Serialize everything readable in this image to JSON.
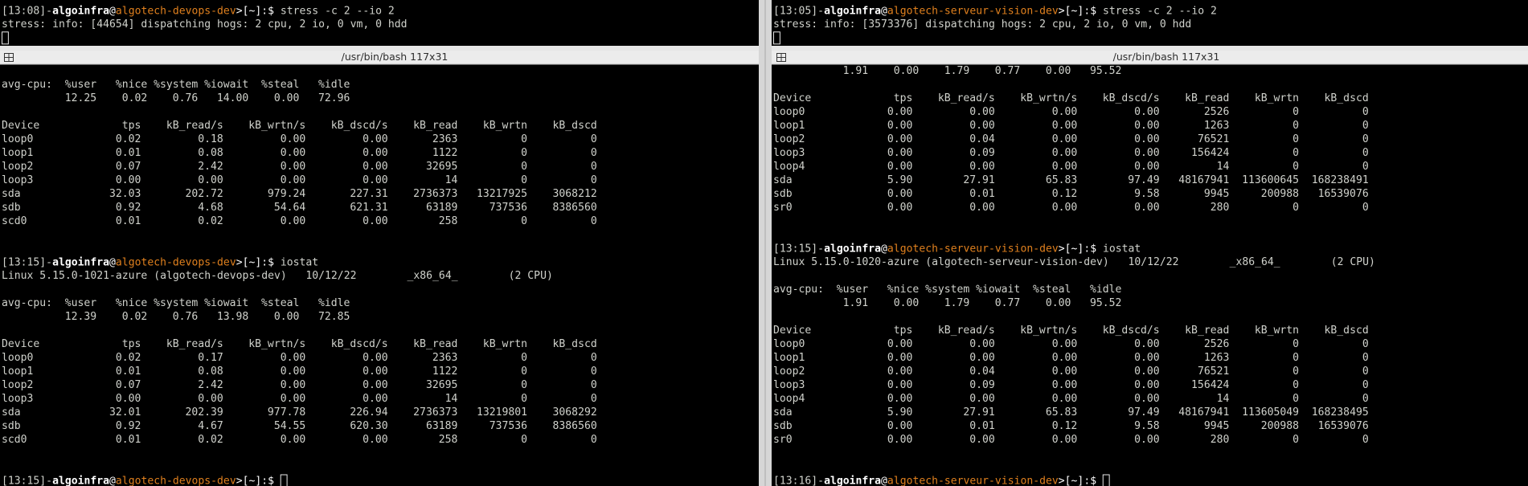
{
  "panes": [
    {
      "lines": [
        {
          "prompt": [
            "[13:08]-",
            "algoinfra",
            "@",
            "algotech-devops-dev",
            ">[~]:$ ",
            "stress -c 2 --io 2"
          ]
        },
        {
          "text": "stress: info: [44654] dispatching hogs: 2 cpu, 2 io, 0 vm, 0 hdd"
        },
        {
          "cursor": true
        }
      ]
    },
    {
      "lines": [
        {
          "prompt": [
            "[13:05]-",
            "algoinfra",
            "@",
            "algotech-serveur-vision-dev",
            ">[~]:$ ",
            "stress -c 2 --io 2"
          ]
        },
        {
          "text": "stress: info: [3573376] dispatching hogs: 2 cpu, 2 io, 0 vm, 0 hdd"
        },
        {
          "cursor": true
        }
      ]
    },
    {
      "title": "/usr/bin/bash 117x31",
      "idle_color": "#8f5fa8",
      "lines": [
        null,
        {
          "cpu_header": [
            "avg-cpu:",
            "%user",
            "%nice",
            "%system",
            "%iowait",
            "%steal",
            "%idle"
          ]
        },
        {
          "cpu": [
            "12.25",
            "0.02",
            "0.76",
            "14.00",
            "0.00",
            "72.96"
          ]
        },
        null,
        {
          "device_header": [
            "Device",
            "tps",
            "kB_read/s",
            "kB_wrtn/s",
            "kB_dscd/s",
            "kB_read",
            "kB_wrtn",
            "kB_dscd"
          ]
        },
        {
          "device": [
            "loop0",
            "0.02",
            "0.18",
            "0.00",
            "0.00",
            "2363",
            "0",
            "0"
          ]
        },
        {
          "device": [
            "loop1",
            "0.01",
            "0.08",
            "0.00",
            "0.00",
            "1122",
            "0",
            "0"
          ]
        },
        {
          "device": [
            "loop2",
            "0.07",
            "2.42",
            "0.00",
            "0.00",
            "32695",
            "0",
            "0"
          ]
        },
        {
          "device": [
            "loop3",
            "0.00",
            "0.00",
            "0.00",
            "0.00",
            "14",
            "0",
            "0"
          ]
        },
        {
          "device": [
            "sda",
            "32.03",
            "202.72",
            "979.24",
            "227.31",
            "2736373",
            "13217925",
            "3068212"
          ]
        },
        {
          "device": [
            "sdb",
            "0.92",
            "4.68",
            "54.64",
            "621.31",
            "63189",
            "737536",
            "8386560"
          ]
        },
        {
          "device": [
            "scd0",
            "0.01",
            "0.02",
            "0.00",
            "0.00",
            "258",
            "0",
            "0"
          ]
        },
        null,
        null,
        {
          "prompt": [
            "[13:15]-",
            "algoinfra",
            "@",
            "algotech-devops-dev",
            ">[~]:$ ",
            "iostat"
          ]
        },
        {
          "text": "Linux 5.15.0-1021-azure (algotech-devops-dev)   10/12/22        _x86_64_        (2 CPU)"
        },
        null,
        {
          "cpu_header": [
            "avg-cpu:",
            "%user",
            "%nice",
            "%system",
            "%iowait",
            "%steal",
            "%idle"
          ]
        },
        {
          "cpu": [
            "12.39",
            "0.02",
            "0.76",
            "13.98",
            "0.00",
            "72.85"
          ]
        },
        null,
        {
          "device_header": [
            "Device",
            "tps",
            "kB_read/s",
            "kB_wrtn/s",
            "kB_dscd/s",
            "kB_read",
            "kB_wrtn",
            "kB_dscd"
          ]
        },
        {
          "device": [
            "loop0",
            "0.02",
            "0.17",
            "0.00",
            "0.00",
            "2363",
            "0",
            "0"
          ]
        },
        {
          "device": [
            "loop1",
            "0.01",
            "0.08",
            "0.00",
            "0.00",
            "1122",
            "0",
            "0"
          ]
        },
        {
          "device": [
            "loop2",
            "0.07",
            "2.42",
            "0.00",
            "0.00",
            "32695",
            "0",
            "0"
          ]
        },
        {
          "device": [
            "loop3",
            "0.00",
            "0.00",
            "0.00",
            "0.00",
            "14",
            "0",
            "0"
          ]
        },
        {
          "device": [
            "sda",
            "32.01",
            "202.39",
            "977.78",
            "226.94",
            "2736373",
            "13219801",
            "3068292"
          ]
        },
        {
          "device": [
            "sdb",
            "0.92",
            "4.67",
            "54.55",
            "620.30",
            "63189",
            "737536",
            "8386560"
          ]
        },
        {
          "device": [
            "scd0",
            "0.01",
            "0.02",
            "0.00",
            "0.00",
            "258",
            "0",
            "0"
          ]
        },
        null,
        null,
        {
          "prompt": [
            "[13:15]-",
            "algoinfra",
            "@",
            "algotech-devops-dev",
            ">[~]:$ "
          ],
          "cursor": true
        }
      ]
    },
    {
      "title": "/usr/bin/bash 117x31",
      "idle_color": "#cc1010",
      "lines": [
        {
          "cpu": [
            "1.91",
            "0.00",
            "1.79",
            "0.77",
            "0.00",
            "95.52"
          ]
        },
        null,
        {
          "device_header": [
            "Device",
            "tps",
            "kB_read/s",
            "kB_wrtn/s",
            "kB_dscd/s",
            "kB_read",
            "kB_wrtn",
            "kB_dscd"
          ]
        },
        {
          "device": [
            "loop0",
            "0.00",
            "0.00",
            "0.00",
            "0.00",
            "2526",
            "0",
            "0"
          ]
        },
        {
          "device": [
            "loop1",
            "0.00",
            "0.00",
            "0.00",
            "0.00",
            "1263",
            "0",
            "0"
          ]
        },
        {
          "device": [
            "loop2",
            "0.00",
            "0.04",
            "0.00",
            "0.00",
            "76521",
            "0",
            "0"
          ]
        },
        {
          "device": [
            "loop3",
            "0.00",
            "0.09",
            "0.00",
            "0.00",
            "156424",
            "0",
            "0"
          ]
        },
        {
          "device": [
            "loop4",
            "0.00",
            "0.00",
            "0.00",
            "0.00",
            "14",
            "0",
            "0"
          ]
        },
        {
          "device": [
            "sda",
            "5.90",
            "27.91",
            "65.83",
            "97.49",
            "48167941",
            "113600645",
            "168238491"
          ]
        },
        {
          "device": [
            "sdb",
            "0.00",
            "0.01",
            "0.12",
            "9.58",
            "9945",
            "200988",
            "16539076"
          ]
        },
        {
          "device": [
            "sr0",
            "0.00",
            "0.00",
            "0.00",
            "0.00",
            "280",
            "0",
            "0"
          ]
        },
        null,
        null,
        {
          "prompt": [
            "[13:15]-",
            "algoinfra",
            "@",
            "algotech-serveur-vision-dev",
            ">[~]:$ ",
            "iostat"
          ]
        },
        {
          "text": "Linux 5.15.0-1020-azure (algotech-serveur-vision-dev)   10/12/22        _x86_64_        (2 CPU)"
        },
        null,
        {
          "cpu_header": [
            "avg-cpu:",
            "%user",
            "%nice",
            "%system",
            "%iowait",
            "%steal",
            "%idle"
          ]
        },
        {
          "cpu": [
            "1.91",
            "0.00",
            "1.79",
            "0.77",
            "0.00",
            "95.52"
          ]
        },
        null,
        {
          "device_header": [
            "Device",
            "tps",
            "kB_read/s",
            "kB_wrtn/s",
            "kB_dscd/s",
            "kB_read",
            "kB_wrtn",
            "kB_dscd"
          ]
        },
        {
          "device": [
            "loop0",
            "0.00",
            "0.00",
            "0.00",
            "0.00",
            "2526",
            "0",
            "0"
          ]
        },
        {
          "device": [
            "loop1",
            "0.00",
            "0.00",
            "0.00",
            "0.00",
            "1263",
            "0",
            "0"
          ]
        },
        {
          "device": [
            "loop2",
            "0.00",
            "0.04",
            "0.00",
            "0.00",
            "76521",
            "0",
            "0"
          ]
        },
        {
          "device": [
            "loop3",
            "0.00",
            "0.09",
            "0.00",
            "0.00",
            "156424",
            "0",
            "0"
          ]
        },
        {
          "device": [
            "loop4",
            "0.00",
            "0.00",
            "0.00",
            "0.00",
            "14",
            "0",
            "0"
          ]
        },
        {
          "device": [
            "sda",
            "5.90",
            "27.91",
            "65.83",
            "97.49",
            "48167941",
            "113605049",
            "168238495"
          ]
        },
        {
          "device": [
            "sdb",
            "0.00",
            "0.01",
            "0.12",
            "9.58",
            "9945",
            "200988",
            "16539076"
          ]
        },
        {
          "device": [
            "sr0",
            "0.00",
            "0.00",
            "0.00",
            "0.00",
            "280",
            "0",
            "0"
          ]
        },
        null,
        null,
        {
          "prompt": [
            "[13:16]-",
            "algoinfra",
            "@",
            "algotech-serveur-vision-dev",
            ">[~]:$ "
          ],
          "cursor": true
        }
      ]
    }
  ]
}
